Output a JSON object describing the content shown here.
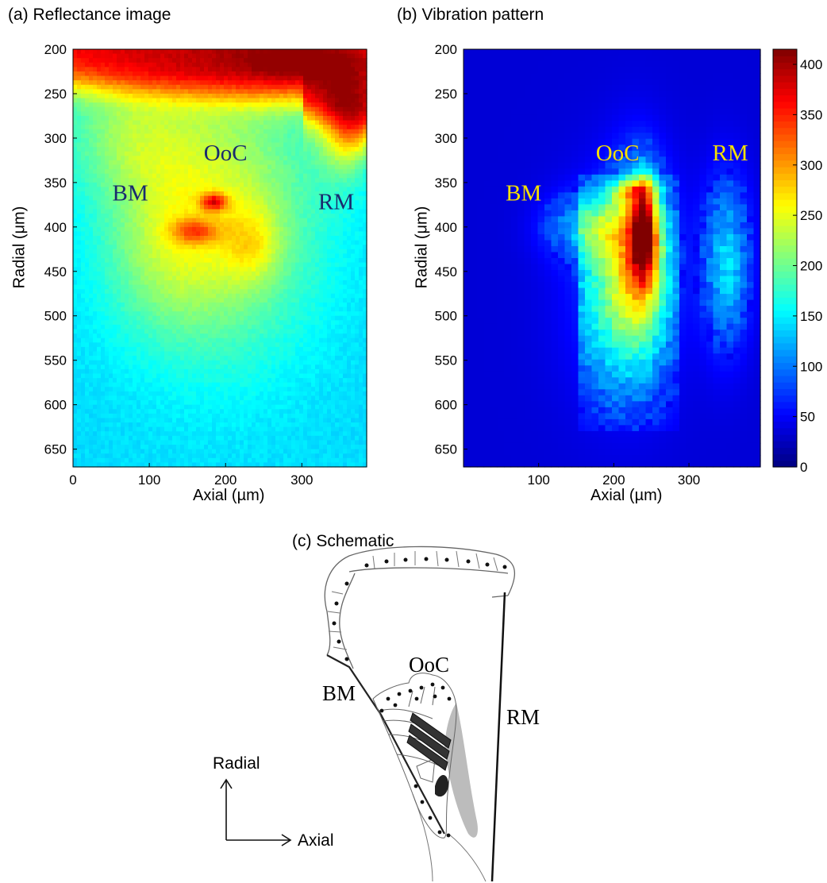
{
  "panels": {
    "a": {
      "title": "(a) Reflectance image",
      "xlabel": "Axial (µm)",
      "ylabel": "Radial (μm)"
    },
    "b": {
      "title": "(b) Vibration pattern",
      "xlabel": "Axial (µm)",
      "ylabel": "Radial (μm)"
    },
    "c": {
      "title": "(c) Schematic"
    }
  },
  "chart_data": [
    {
      "type": "heatmap",
      "title": "(a) Reflectance image",
      "xlabel": "Axial (µm)",
      "ylabel": "Radial (μm)",
      "xlim": [
        0,
        385
      ],
      "ylim": [
        670,
        200
      ],
      "xticks": [
        0,
        100,
        200,
        300
      ],
      "yticks": [
        200,
        250,
        300,
        350,
        400,
        450,
        500,
        550,
        600,
        650
      ],
      "annotations": [
        {
          "text": "OoC",
          "x": 200,
          "y": 325,
          "color": "#1a2a6e"
        },
        {
          "text": "BM",
          "x": 75,
          "y": 370,
          "color": "#1a2a6e"
        },
        {
          "text": "RM",
          "x": 345,
          "y": 380,
          "color": "#1a2a6e"
        }
      ],
      "colormap": "jet"
    },
    {
      "type": "heatmap",
      "title": "(b) Vibration pattern",
      "xlabel": "Axial (µm)",
      "ylabel": "Radial (μm)",
      "xlim": [
        0,
        395
      ],
      "ylim": [
        670,
        200
      ],
      "xticks": [
        100,
        200,
        300
      ],
      "yticks": [
        200,
        250,
        300,
        350,
        400,
        450,
        500,
        550,
        600,
        650
      ],
      "colorbar": {
        "min": 0,
        "max": 415,
        "ticks": [
          0,
          50,
          100,
          150,
          200,
          250,
          300,
          350,
          400
        ]
      },
      "annotations": [
        {
          "text": "OoC",
          "x": 205,
          "y": 325,
          "color": "#f5e000"
        },
        {
          "text": "BM",
          "x": 80,
          "y": 370,
          "color": "#f5e000"
        },
        {
          "text": "RM",
          "x": 355,
          "y": 325,
          "color": "#f5e000"
        }
      ],
      "colormap": "jet"
    }
  ],
  "schematic": {
    "labels": {
      "ooc": "OoC",
      "bm": "BM",
      "rm": "RM"
    },
    "axes": {
      "radial": "Radial",
      "axial": "Axial"
    }
  }
}
